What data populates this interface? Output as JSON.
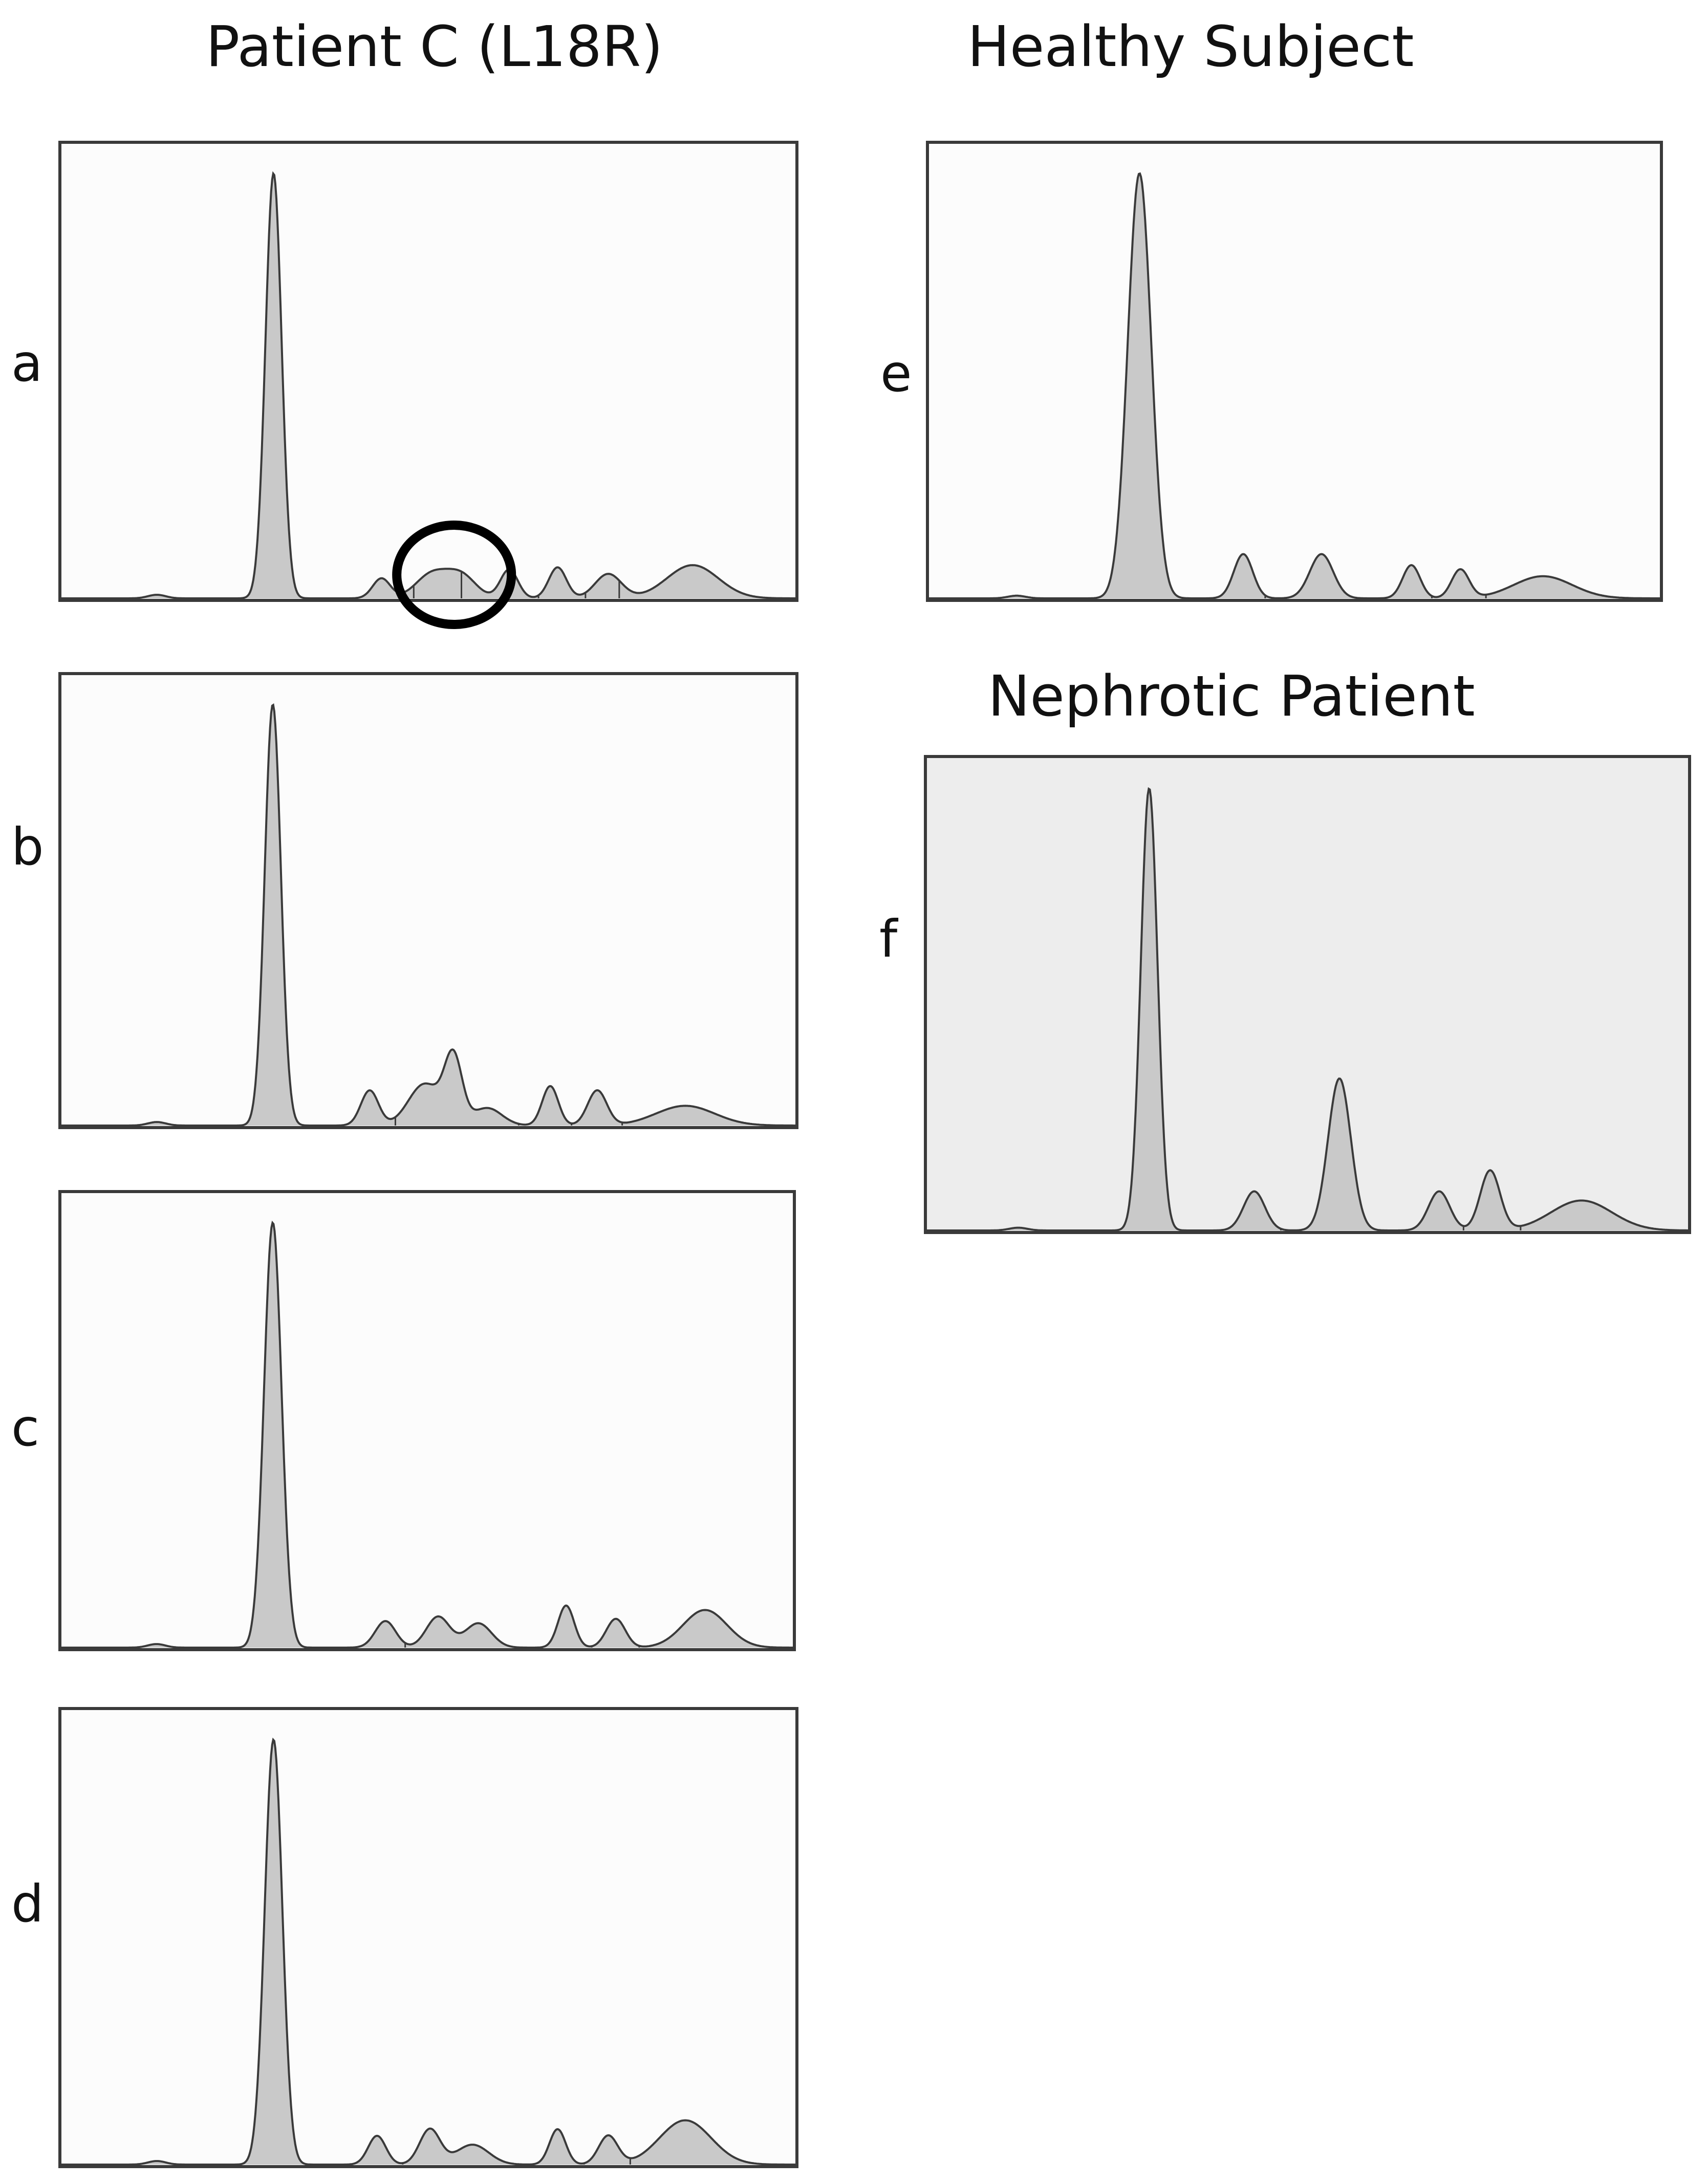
{
  "headings": {
    "left": "Patient C (L18R)",
    "right_top": "Healthy Subject",
    "right_mid": "Nephrotic Patient"
  },
  "colors": {
    "fill": "#c9c9c9",
    "line": "#3a3a3a",
    "panel_bg_default": "#fcfcfc",
    "panel_bg_nephrotic": "#ededed",
    "highlight": "#000000"
  },
  "chart_data": [
    {
      "type": "area",
      "panel": "a",
      "x_range": [
        0,
        1
      ],
      "y_range": [
        0,
        1
      ],
      "peaks": [
        {
          "x": 0.13,
          "h": 0.008,
          "w": 0.012
        },
        {
          "x": 0.289,
          "h": 0.96,
          "w": 0.011
        },
        {
          "x": 0.436,
          "h": 0.045,
          "w": 0.012
        },
        {
          "x": 0.505,
          "h": 0.055,
          "w": 0.022
        },
        {
          "x": 0.545,
          "h": 0.05,
          "w": 0.02
        },
        {
          "x": 0.61,
          "h": 0.065,
          "w": 0.012
        },
        {
          "x": 0.676,
          "h": 0.07,
          "w": 0.012
        },
        {
          "x": 0.745,
          "h": 0.055,
          "w": 0.018
        },
        {
          "x": 0.86,
          "h": 0.075,
          "w": 0.035
        }
      ],
      "dividers": [
        0.36,
        0.48,
        0.545,
        0.65,
        0.714,
        0.76
      ],
      "highlight_circle": {
        "x": 0.535,
        "y": 0.03
      }
    },
    {
      "type": "area",
      "panel": "b",
      "x_range": [
        0,
        1
      ],
      "y_range": [
        0,
        1
      ],
      "peaks": [
        {
          "x": 0.13,
          "h": 0.008,
          "w": 0.012
        },
        {
          "x": 0.288,
          "h": 0.96,
          "w": 0.011
        },
        {
          "x": 0.42,
          "h": 0.08,
          "w": 0.012
        },
        {
          "x": 0.495,
          "h": 0.095,
          "w": 0.022
        },
        {
          "x": 0.534,
          "h": 0.15,
          "w": 0.012
        },
        {
          "x": 0.58,
          "h": 0.04,
          "w": 0.02
        },
        {
          "x": 0.666,
          "h": 0.09,
          "w": 0.011
        },
        {
          "x": 0.73,
          "h": 0.08,
          "w": 0.013
        },
        {
          "x": 0.85,
          "h": 0.045,
          "w": 0.04
        }
      ],
      "dividers": [
        0.36,
        0.455,
        0.623,
        0.695,
        0.764
      ]
    },
    {
      "type": "area",
      "panel": "c",
      "x_range": [
        0,
        1
      ],
      "y_range": [
        0,
        1
      ],
      "peaks": [
        {
          "x": 0.13,
          "h": 0.008,
          "w": 0.012
        },
        {
          "x": 0.289,
          "h": 0.96,
          "w": 0.012
        },
        {
          "x": 0.443,
          "h": 0.06,
          "w": 0.014
        },
        {
          "x": 0.515,
          "h": 0.07,
          "w": 0.016
        },
        {
          "x": 0.57,
          "h": 0.055,
          "w": 0.018
        },
        {
          "x": 0.69,
          "h": 0.095,
          "w": 0.011
        },
        {
          "x": 0.758,
          "h": 0.065,
          "w": 0.013
        },
        {
          "x": 0.88,
          "h": 0.085,
          "w": 0.03
        }
      ],
      "dividers": [
        0.375,
        0.47,
        0.645,
        0.725,
        0.79
      ]
    },
    {
      "type": "area",
      "panel": "d",
      "x_range": [
        0,
        1
      ],
      "y_range": [
        0,
        1
      ],
      "peaks": [
        {
          "x": 0.13,
          "h": 0.008,
          "w": 0.012
        },
        {
          "x": 0.289,
          "h": 0.96,
          "w": 0.012
        },
        {
          "x": 0.43,
          "h": 0.065,
          "w": 0.012
        },
        {
          "x": 0.502,
          "h": 0.08,
          "w": 0.014
        },
        {
          "x": 0.56,
          "h": 0.045,
          "w": 0.022
        },
        {
          "x": 0.676,
          "h": 0.08,
          "w": 0.011
        },
        {
          "x": 0.745,
          "h": 0.065,
          "w": 0.013
        },
        {
          "x": 0.85,
          "h": 0.1,
          "w": 0.035
        }
      ],
      "dividers": [
        0.375,
        0.465,
        0.628,
        0.712,
        0.775
      ]
    },
    {
      "type": "area",
      "panel": "e",
      "x_range": [
        0,
        1
      ],
      "y_range": [
        0,
        1
      ],
      "peaks": [
        {
          "x": 0.12,
          "h": 0.006,
          "w": 0.012
        },
        {
          "x": 0.288,
          "h": 0.96,
          "w": 0.016
        },
        {
          "x": 0.43,
          "h": 0.1,
          "w": 0.013
        },
        {
          "x": 0.537,
          "h": 0.1,
          "w": 0.016
        },
        {
          "x": 0.66,
          "h": 0.075,
          "w": 0.012
        },
        {
          "x": 0.727,
          "h": 0.065,
          "w": 0.012
        },
        {
          "x": 0.84,
          "h": 0.05,
          "w": 0.04
        }
      ],
      "dividers": [
        0.36,
        0.46,
        0.612,
        0.688,
        0.762
      ]
    },
    {
      "type": "area",
      "panel": "f",
      "x_range": [
        0,
        1
      ],
      "y_range": [
        0,
        1
      ],
      "peaks": [
        {
          "x": 0.12,
          "h": 0.006,
          "w": 0.012
        },
        {
          "x": 0.292,
          "h": 0.96,
          "w": 0.011
        },
        {
          "x": 0.43,
          "h": 0.085,
          "w": 0.014
        },
        {
          "x": 0.542,
          "h": 0.33,
          "w": 0.015
        },
        {
          "x": 0.673,
          "h": 0.085,
          "w": 0.014
        },
        {
          "x": 0.74,
          "h": 0.13,
          "w": 0.013
        },
        {
          "x": 0.86,
          "h": 0.065,
          "w": 0.04
        }
      ],
      "dividers": [
        0.374,
        0.465,
        0.63,
        0.705,
        0.78
      ]
    }
  ]
}
